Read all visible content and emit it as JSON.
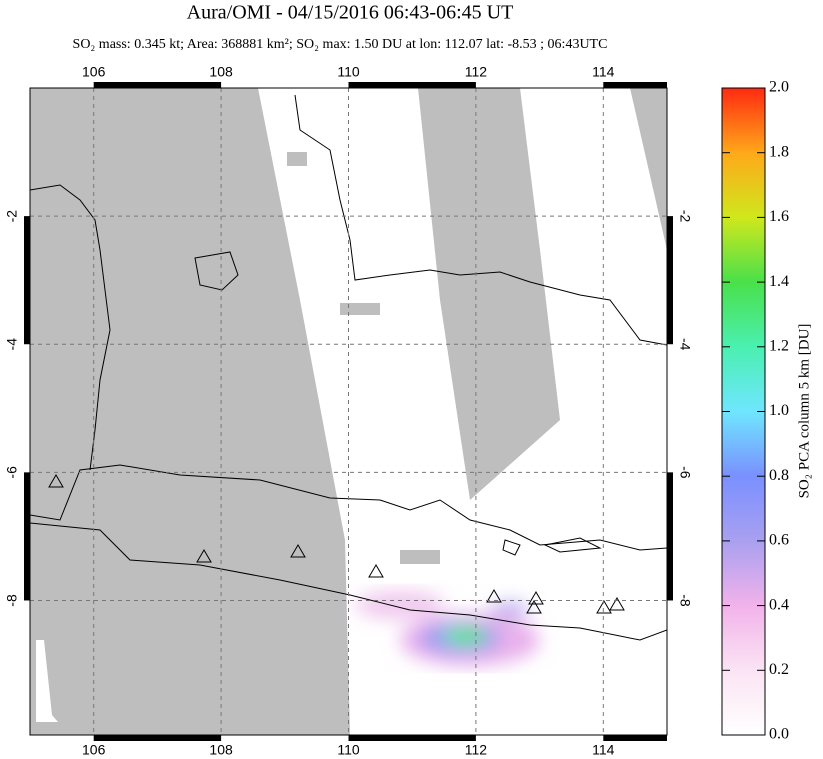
{
  "chart_data": {
    "type": "map",
    "title": "Aura/OMI - 04/15/2016 06:43-06:45 UT",
    "subtitle": "SO₂ mass: 0.345 kt; Area: 368881 km²; SO₂ max: 1.50 DU at lon: 112.07 lat: -8.53 ; 06:43UTC",
    "xlim": [
      105,
      115
    ],
    "xticks": [
      106,
      108,
      110,
      112,
      114
    ],
    "ylim": [
      -10.1,
      0
    ],
    "yticks": [
      -2,
      -4,
      -6,
      -8
    ],
    "grid": true,
    "colorbar": {
      "label": "SO₂ PCA column 5 km [DU]",
      "lim": [
        0,
        2
      ],
      "ticks": [
        {
          "value": 0,
          "label": "0.0"
        },
        0.2,
        0.4,
        0.6,
        0.8,
        {
          "value": 1,
          "label": "1.0"
        },
        1.2,
        1.4,
        1.6,
        1.8,
        {
          "value": 2,
          "label": "2.0"
        }
      ]
    }
  }
}
